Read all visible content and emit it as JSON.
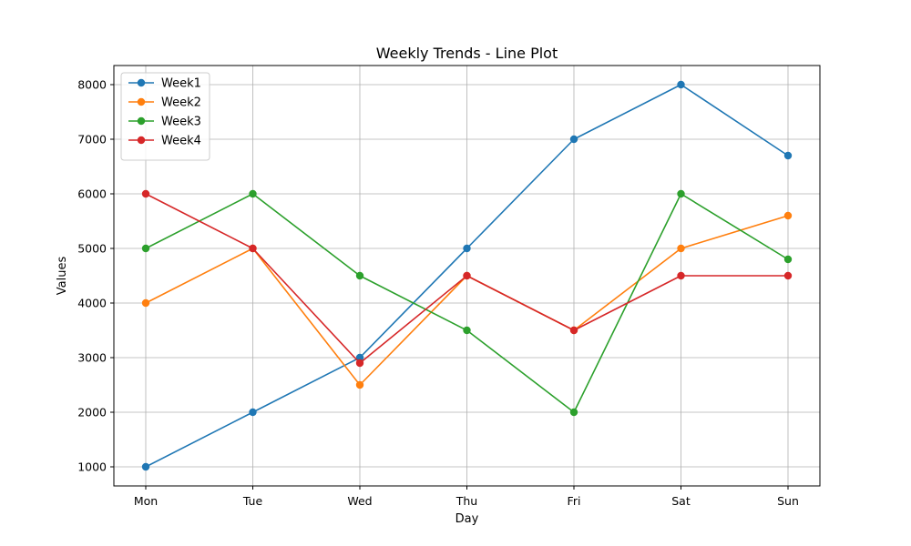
{
  "chart_data": {
    "type": "line",
    "title": "Weekly Trends - Line Plot",
    "xlabel": "Day",
    "ylabel": "Values",
    "categories": [
      "Mon",
      "Tue",
      "Wed",
      "Thu",
      "Fri",
      "Sat",
      "Sun"
    ],
    "ylim": [
      650,
      8350
    ],
    "yticks": [
      1000,
      2000,
      3000,
      4000,
      5000,
      6000,
      7000,
      8000
    ],
    "grid": true,
    "legend_position": "top-left",
    "series": [
      {
        "name": "Week1",
        "color": "#1f77b4",
        "values": [
          1000,
          2000,
          3000,
          5000,
          7000,
          8000,
          6700
        ]
      },
      {
        "name": "Week2",
        "color": "#ff7f0e",
        "values": [
          4000,
          5000,
          2500,
          4500,
          3500,
          5000,
          5600
        ]
      },
      {
        "name": "Week3",
        "color": "#2ca02c",
        "values": [
          5000,
          6000,
          4500,
          3500,
          2000,
          6000,
          4800
        ]
      },
      {
        "name": "Week4",
        "color": "#d62728",
        "values": [
          6000,
          5000,
          2900,
          4500,
          3500,
          4500,
          4500
        ]
      }
    ]
  }
}
